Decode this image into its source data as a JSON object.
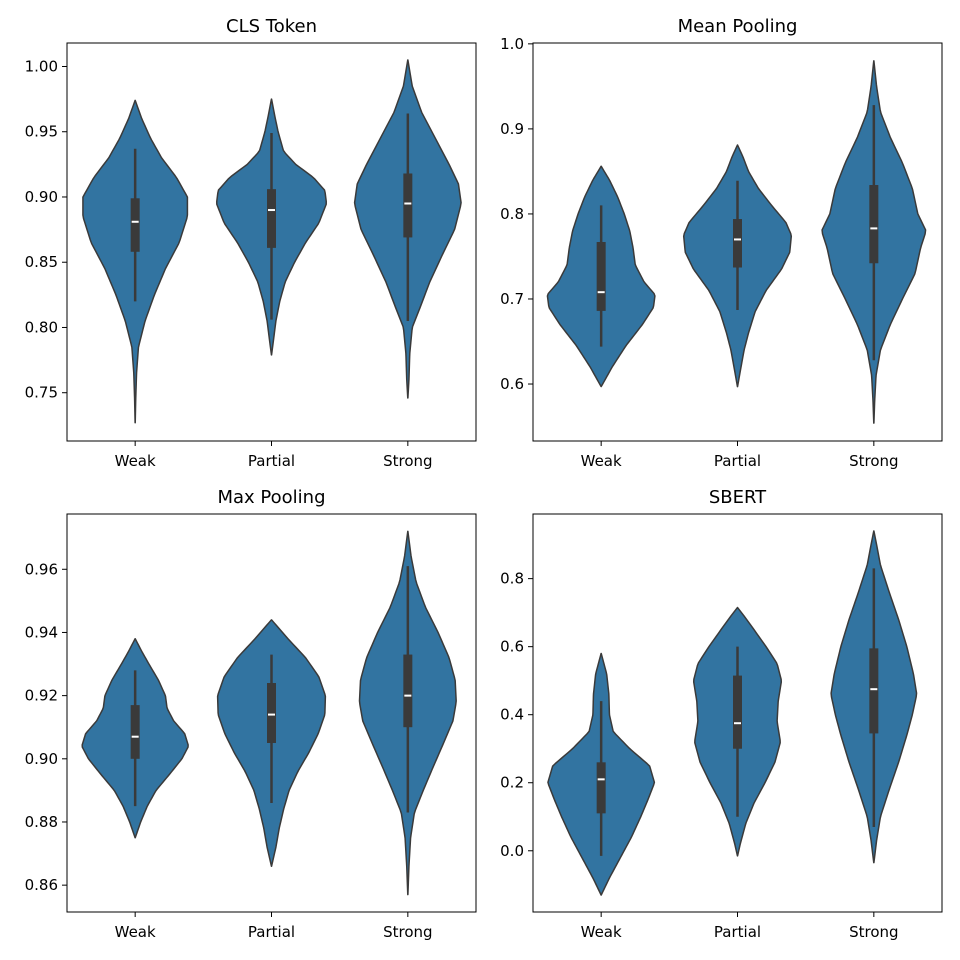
{
  "colors": {
    "violin_fill": "#3274a1",
    "violin_edge": "#3a3a3a",
    "box": "#3a3a3a",
    "median": "#ffffff"
  },
  "chart_data": [
    {
      "type": "violin",
      "title": "CLS Token",
      "xlabel": "",
      "ylabel": "",
      "categories": [
        "Weak",
        "Partial",
        "Strong"
      ],
      "ylim": [
        0.713,
        1.018
      ],
      "yticks": [
        0.75,
        0.8,
        0.85,
        0.9,
        0.95,
        1.0
      ],
      "ytick_labels": [
        "0.75",
        "0.80",
        "0.85",
        "0.90",
        "0.95",
        "1.00"
      ],
      "violins": [
        {
          "category": "Weak",
          "extent": [
            0.727,
            0.974
          ],
          "median": 0.881,
          "q1": 0.858,
          "q3": 0.899,
          "whisker_low": 0.82,
          "whisker_high": 0.937,
          "density": [
            [
              0.727,
              0.001
            ],
            [
              0.745,
              0.01
            ],
            [
              0.765,
              0.025
            ],
            [
              0.785,
              0.06
            ],
            [
              0.805,
              0.18
            ],
            [
              0.825,
              0.35
            ],
            [
              0.845,
              0.55
            ],
            [
              0.865,
              0.8
            ],
            [
              0.885,
              0.95
            ],
            [
              0.9,
              0.95
            ],
            [
              0.915,
              0.75
            ],
            [
              0.93,
              0.48
            ],
            [
              0.945,
              0.28
            ],
            [
              0.96,
              0.12
            ],
            [
              0.974,
              0.001
            ]
          ]
        },
        {
          "category": "Partial",
          "extent": [
            0.779,
            0.975
          ],
          "median": 0.89,
          "q1": 0.861,
          "q3": 0.906,
          "whisker_low": 0.806,
          "whisker_high": 0.949,
          "density": [
            [
              0.779,
              0.001
            ],
            [
              0.79,
              0.035
            ],
            [
              0.805,
              0.08
            ],
            [
              0.82,
              0.15
            ],
            [
              0.835,
              0.25
            ],
            [
              0.85,
              0.42
            ],
            [
              0.865,
              0.62
            ],
            [
              0.88,
              0.86
            ],
            [
              0.895,
              1.0
            ],
            [
              0.905,
              0.97
            ],
            [
              0.915,
              0.76
            ],
            [
              0.925,
              0.44
            ],
            [
              0.935,
              0.22
            ],
            [
              0.95,
              0.12
            ],
            [
              0.962,
              0.06
            ],
            [
              0.975,
              0.001
            ]
          ]
        },
        {
          "category": "Strong",
          "extent": [
            0.746,
            1.005
          ],
          "median": 0.895,
          "q1": 0.869,
          "q3": 0.918,
          "whisker_low": 0.805,
          "whisker_high": 0.964,
          "density": [
            [
              0.746,
              0.001
            ],
            [
              0.76,
              0.02
            ],
            [
              0.78,
              0.035
            ],
            [
              0.8,
              0.08
            ],
            [
              0.815,
              0.22
            ],
            [
              0.835,
              0.4
            ],
            [
              0.855,
              0.62
            ],
            [
              0.875,
              0.85
            ],
            [
              0.895,
              0.97
            ],
            [
              0.91,
              0.92
            ],
            [
              0.925,
              0.75
            ],
            [
              0.945,
              0.5
            ],
            [
              0.965,
              0.25
            ],
            [
              0.985,
              0.08
            ],
            [
              1.005,
              0.001
            ]
          ]
        }
      ]
    },
    {
      "type": "violin",
      "title": "Mean Pooling",
      "xlabel": "",
      "ylabel": "",
      "categories": [
        "Weak",
        "Partial",
        "Strong"
      ],
      "ylim": [
        0.533,
        1.001
      ],
      "yticks": [
        0.6,
        0.7,
        0.8,
        0.9,
        1.0
      ],
      "ytick_labels": [
        "0.6",
        "0.7",
        "0.8",
        "0.9",
        "1.0"
      ],
      "violins": [
        {
          "category": "Weak",
          "extent": [
            0.597,
            0.856
          ],
          "median": 0.708,
          "q1": 0.686,
          "q3": 0.767,
          "whisker_low": 0.644,
          "whisker_high": 0.81,
          "density": [
            [
              0.597,
              0.001
            ],
            [
              0.62,
              0.2
            ],
            [
              0.645,
              0.45
            ],
            [
              0.67,
              0.75
            ],
            [
              0.69,
              0.95
            ],
            [
              0.705,
              0.98
            ],
            [
              0.72,
              0.78
            ],
            [
              0.74,
              0.62
            ],
            [
              0.76,
              0.58
            ],
            [
              0.78,
              0.52
            ],
            [
              0.8,
              0.42
            ],
            [
              0.82,
              0.3
            ],
            [
              0.84,
              0.15
            ],
            [
              0.856,
              0.001
            ]
          ]
        },
        {
          "category": "Partial",
          "extent": [
            0.597,
            0.881
          ],
          "median": 0.77,
          "q1": 0.737,
          "q3": 0.794,
          "whisker_low": 0.687,
          "whisker_high": 0.839,
          "density": [
            [
              0.597,
              0.001
            ],
            [
              0.615,
              0.05
            ],
            [
              0.64,
              0.12
            ],
            [
              0.66,
              0.2
            ],
            [
              0.685,
              0.32
            ],
            [
              0.71,
              0.52
            ],
            [
              0.735,
              0.8
            ],
            [
              0.755,
              0.95
            ],
            [
              0.775,
              0.98
            ],
            [
              0.79,
              0.88
            ],
            [
              0.81,
              0.62
            ],
            [
              0.83,
              0.38
            ],
            [
              0.85,
              0.2
            ],
            [
              0.867,
              0.1
            ],
            [
              0.881,
              0.001
            ]
          ]
        },
        {
          "category": "Strong",
          "extent": [
            0.554,
            0.98
          ],
          "median": 0.783,
          "q1": 0.742,
          "q3": 0.834,
          "whisker_low": 0.628,
          "whisker_high": 0.928,
          "density": [
            [
              0.554,
              0.001
            ],
            [
              0.58,
              0.015
            ],
            [
              0.61,
              0.04
            ],
            [
              0.64,
              0.12
            ],
            [
              0.67,
              0.3
            ],
            [
              0.7,
              0.52
            ],
            [
              0.73,
              0.75
            ],
            [
              0.76,
              0.85
            ],
            [
              0.78,
              0.95
            ],
            [
              0.8,
              0.8
            ],
            [
              0.83,
              0.7
            ],
            [
              0.86,
              0.52
            ],
            [
              0.89,
              0.3
            ],
            [
              0.92,
              0.12
            ],
            [
              0.95,
              0.05
            ],
            [
              0.98,
              0.001
            ]
          ]
        }
      ]
    },
    {
      "type": "violin",
      "title": "Max Pooling",
      "xlabel": "",
      "ylabel": "",
      "categories": [
        "Weak",
        "Partial",
        "Strong"
      ],
      "ylim": [
        0.8515,
        0.9775
      ],
      "yticks": [
        0.86,
        0.88,
        0.9,
        0.92,
        0.94,
        0.96
      ],
      "ytick_labels": [
        "0.86",
        "0.88",
        "0.90",
        "0.92",
        "0.94",
        "0.96"
      ],
      "violins": [
        {
          "category": "Weak",
          "extent": [
            0.875,
            0.938
          ],
          "median": 0.907,
          "q1": 0.9,
          "q3": 0.917,
          "whisker_low": 0.885,
          "whisker_high": 0.928,
          "density": [
            [
              0.875,
              0.001
            ],
            [
              0.88,
              0.1
            ],
            [
              0.885,
              0.22
            ],
            [
              0.89,
              0.38
            ],
            [
              0.895,
              0.62
            ],
            [
              0.9,
              0.85
            ],
            [
              0.904,
              0.97
            ],
            [
              0.908,
              0.9
            ],
            [
              0.912,
              0.7
            ],
            [
              0.916,
              0.58
            ],
            [
              0.92,
              0.55
            ],
            [
              0.925,
              0.42
            ],
            [
              0.93,
              0.25
            ],
            [
              0.934,
              0.12
            ],
            [
              0.938,
              0.001
            ]
          ]
        },
        {
          "category": "Partial",
          "extent": [
            0.866,
            0.944
          ],
          "median": 0.914,
          "q1": 0.905,
          "q3": 0.924,
          "whisker_low": 0.886,
          "whisker_high": 0.933,
          "density": [
            [
              0.866,
              0.001
            ],
            [
              0.872,
              0.08
            ],
            [
              0.878,
              0.14
            ],
            [
              0.884,
              0.22
            ],
            [
              0.89,
              0.32
            ],
            [
              0.896,
              0.48
            ],
            [
              0.902,
              0.68
            ],
            [
              0.908,
              0.85
            ],
            [
              0.914,
              0.97
            ],
            [
              0.92,
              0.98
            ],
            [
              0.926,
              0.86
            ],
            [
              0.932,
              0.62
            ],
            [
              0.938,
              0.3
            ],
            [
              0.941,
              0.15
            ],
            [
              0.944,
              0.001
            ]
          ]
        },
        {
          "category": "Strong",
          "extent": [
            0.857,
            0.972
          ],
          "median": 0.92,
          "q1": 0.91,
          "q3": 0.933,
          "whisker_low": 0.883,
          "whisker_high": 0.961,
          "density": [
            [
              0.857,
              0.001
            ],
            [
              0.866,
              0.02
            ],
            [
              0.875,
              0.05
            ],
            [
              0.883,
              0.12
            ],
            [
              0.89,
              0.28
            ],
            [
              0.897,
              0.45
            ],
            [
              0.905,
              0.65
            ],
            [
              0.912,
              0.82
            ],
            [
              0.918,
              0.88
            ],
            [
              0.925,
              0.86
            ],
            [
              0.932,
              0.75
            ],
            [
              0.94,
              0.55
            ],
            [
              0.948,
              0.32
            ],
            [
              0.956,
              0.15
            ],
            [
              0.964,
              0.06
            ],
            [
              0.972,
              0.001
            ]
          ]
        }
      ]
    },
    {
      "type": "violin",
      "title": "SBERT",
      "xlabel": "",
      "ylabel": "",
      "categories": [
        "Weak",
        "Partial",
        "Strong"
      ],
      "ylim": [
        -0.18,
        0.99
      ],
      "yticks": [
        0.0,
        0.2,
        0.4,
        0.6,
        0.8
      ],
      "ytick_labels": [
        "0.0",
        "0.2",
        "0.4",
        "0.6",
        "0.8"
      ],
      "violins": [
        {
          "category": "Weak",
          "extent": [
            -0.13,
            0.58
          ],
          "median": 0.21,
          "q1": 0.11,
          "q3": 0.26,
          "whisker_low": -0.015,
          "whisker_high": 0.44,
          "density": [
            [
              -0.13,
              0.001
            ],
            [
              -0.08,
              0.15
            ],
            [
              -0.02,
              0.35
            ],
            [
              0.04,
              0.55
            ],
            [
              0.1,
              0.72
            ],
            [
              0.15,
              0.85
            ],
            [
              0.2,
              0.97
            ],
            [
              0.25,
              0.88
            ],
            [
              0.3,
              0.52
            ],
            [
              0.35,
              0.22
            ],
            [
              0.4,
              0.15
            ],
            [
              0.46,
              0.14
            ],
            [
              0.52,
              0.1
            ],
            [
              0.58,
              0.001
            ]
          ]
        },
        {
          "category": "Partial",
          "extent": [
            -0.015,
            0.715
          ],
          "median": 0.375,
          "q1": 0.3,
          "q3": 0.515,
          "whisker_low": 0.1,
          "whisker_high": 0.6,
          "density": [
            [
              -0.015,
              0.001
            ],
            [
              0.02,
              0.05
            ],
            [
              0.08,
              0.15
            ],
            [
              0.14,
              0.3
            ],
            [
              0.2,
              0.5
            ],
            [
              0.26,
              0.68
            ],
            [
              0.32,
              0.78
            ],
            [
              0.38,
              0.72
            ],
            [
              0.44,
              0.74
            ],
            [
              0.5,
              0.8
            ],
            [
              0.55,
              0.72
            ],
            [
              0.6,
              0.52
            ],
            [
              0.65,
              0.3
            ],
            [
              0.69,
              0.12
            ],
            [
              0.715,
              0.001
            ]
          ]
        },
        {
          "category": "Strong",
          "extent": [
            -0.035,
            0.94
          ],
          "median": 0.475,
          "q1": 0.345,
          "q3": 0.595,
          "whisker_low": 0.07,
          "whisker_high": 0.83,
          "density": [
            [
              -0.035,
              0.001
            ],
            [
              0.03,
              0.05
            ],
            [
              0.1,
              0.12
            ],
            [
              0.18,
              0.28
            ],
            [
              0.26,
              0.45
            ],
            [
              0.34,
              0.6
            ],
            [
              0.4,
              0.7
            ],
            [
              0.46,
              0.78
            ],
            [
              0.52,
              0.72
            ],
            [
              0.6,
              0.6
            ],
            [
              0.68,
              0.45
            ],
            [
              0.76,
              0.28
            ],
            [
              0.84,
              0.12
            ],
            [
              0.9,
              0.05
            ],
            [
              0.94,
              0.001
            ]
          ]
        }
      ]
    }
  ]
}
